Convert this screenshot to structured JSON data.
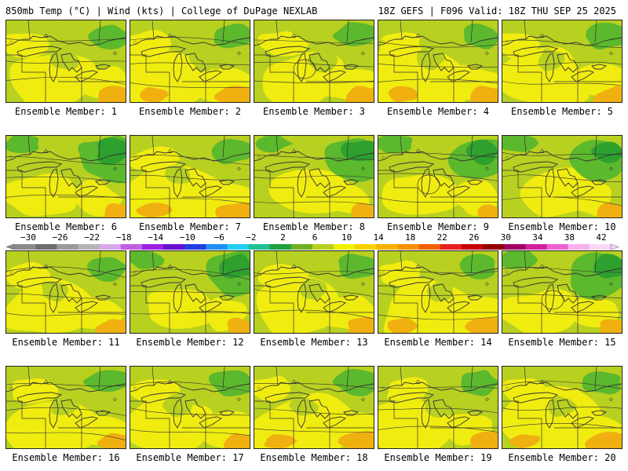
{
  "header": {
    "left_title": "850mb Temp (°C) | Wind (kts) | College of DuPage NEXLAB",
    "right_title": "18Z GEFS | F096 Valid: 18Z THU SEP 25 2025"
  },
  "members": [
    {
      "label": "Ensemble Member: 1",
      "tone": 1
    },
    {
      "label": "Ensemble Member: 2",
      "tone": 2
    },
    {
      "label": "Ensemble Member: 3",
      "tone": 1
    },
    {
      "label": "Ensemble Member: 4",
      "tone": 2
    },
    {
      "label": "Ensemble Member: 5",
      "tone": 1
    },
    {
      "label": "Ensemble Member: 6",
      "tone": 0
    },
    {
      "label": "Ensemble Member: 7",
      "tone": 2
    },
    {
      "label": "Ensemble Member: 8",
      "tone": 0
    },
    {
      "label": "Ensemble Member: 9",
      "tone": 0
    },
    {
      "label": "Ensemble Member: 10",
      "tone": 0
    },
    {
      "label": "Ensemble Member: 11",
      "tone": 1
    },
    {
      "label": "Ensemble Member: 12",
      "tone": 0
    },
    {
      "label": "Ensemble Member: 13",
      "tone": 1
    },
    {
      "label": "Ensemble Member: 14",
      "tone": 2
    },
    {
      "label": "Ensemble Member: 15",
      "tone": 0
    },
    {
      "label": "Ensemble Member: 16",
      "tone": 1
    },
    {
      "label": "Ensemble Member: 17",
      "tone": 1
    },
    {
      "label": "Ensemble Member: 18",
      "tone": 2
    },
    {
      "label": "Ensemble Member: 19",
      "tone": 1
    },
    {
      "label": "Ensemble Member: 20",
      "tone": 2
    }
  ],
  "colorbar": {
    "labels": [
      "−30",
      "−26",
      "−22",
      "−18",
      "−14",
      "−10",
      "−6",
      "−2",
      "2",
      "6",
      "10",
      "14",
      "18",
      "22",
      "26",
      "30",
      "34",
      "38",
      "42"
    ],
    "colors": [
      "#8a8a8a",
      "#6e6e6e",
      "#9a9a9a",
      "#b4b4b4",
      "#d8a8e8",
      "#c060e0",
      "#a020e0",
      "#6a10d0",
      "#2040e0",
      "#2090f0",
      "#20d0f0",
      "#20c090",
      "#20a040",
      "#70b020",
      "#b8d020",
      "#f0f000",
      "#f8d000",
      "#f8b000",
      "#f89000",
      "#f06000",
      "#e82020",
      "#c80000",
      "#900000",
      "#a00060",
      "#d020a0",
      "#f060d0",
      "#f8b0f0",
      "#f8d8f8"
    ]
  },
  "palette": {
    "green_dark": "#2ea02e",
    "green": "#5cb82c",
    "yellow_green": "#b8d020",
    "yellow": "#f0ec10",
    "orange": "#f0b010",
    "contour": "#333333"
  }
}
